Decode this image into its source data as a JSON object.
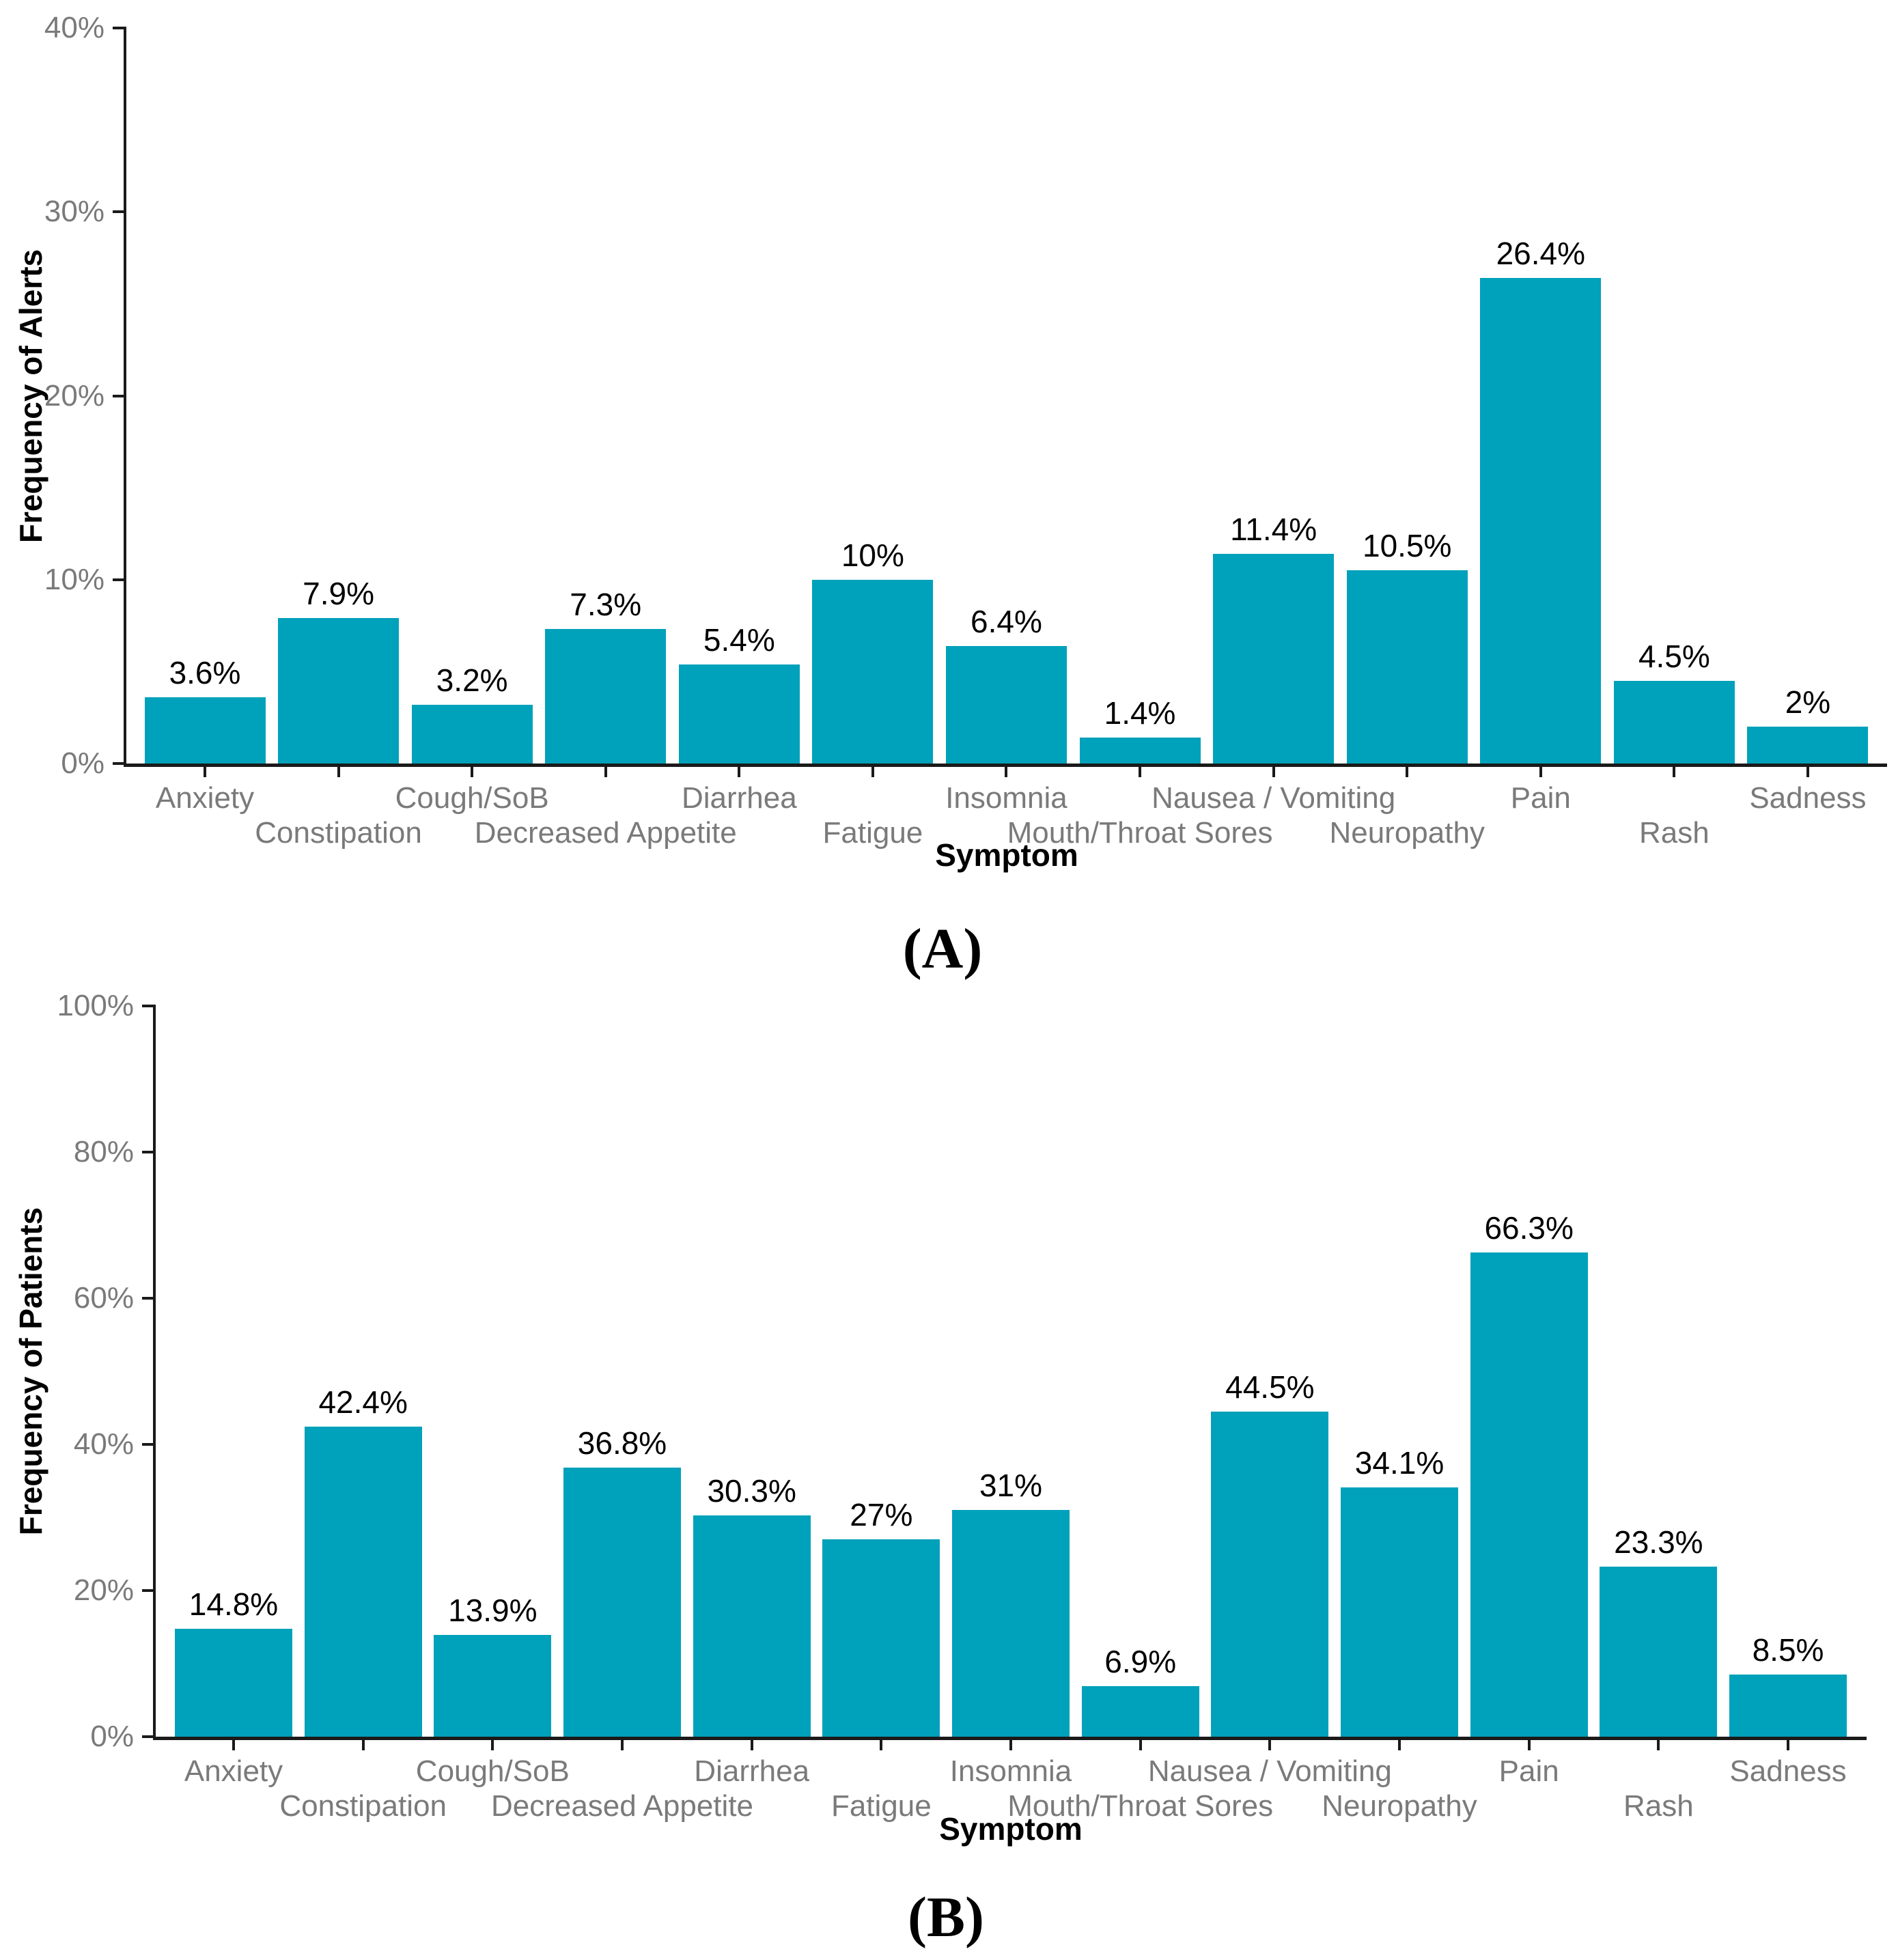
{
  "figure": {
    "panels": [
      {
        "panel_label": "(A)"
      },
      {
        "panel_label": "(B)"
      }
    ]
  },
  "chart_data": [
    {
      "type": "bar",
      "panel": "A",
      "categories": [
        "Anxiety",
        "Constipation",
        "Cough/SoB",
        "Decreased Appetite",
        "Diarrhea",
        "Fatigue",
        "Insomnia",
        "Mouth/Throat Sores",
        "Nausea / Vomiting",
        "Neuropathy",
        "Pain",
        "Rash",
        "Sadness"
      ],
      "values": [
        3.6,
        7.9,
        3.2,
        7.3,
        5.4,
        10,
        6.4,
        1.4,
        11.4,
        10.5,
        26.4,
        4.5,
        2
      ],
      "value_labels": [
        "3.6%",
        "7.9%",
        "3.2%",
        "7.3%",
        "5.4%",
        "10%",
        "6.4%",
        "1.4%",
        "11.4%",
        "10.5%",
        "26.4%",
        "4.5%",
        "2%"
      ],
      "xlabel": "Symptom",
      "ylabel": "Frequency of Alerts",
      "ylim": [
        0,
        40
      ],
      "yticks": [
        0,
        10,
        20,
        30,
        40
      ],
      "ytick_labels": [
        "0%",
        "10%",
        "20%",
        "30%",
        "40%"
      ],
      "bar_color": "#00A1BA",
      "grid": false,
      "legend": "none"
    },
    {
      "type": "bar",
      "panel": "B",
      "categories": [
        "Anxiety",
        "Constipation",
        "Cough/SoB",
        "Decreased Appetite",
        "Diarrhea",
        "Fatigue",
        "Insomnia",
        "Mouth/Throat Sores",
        "Nausea / Vomiting",
        "Neuropathy",
        "Pain",
        "Rash",
        "Sadness"
      ],
      "values": [
        14.8,
        42.4,
        13.9,
        36.8,
        30.3,
        27,
        31,
        6.9,
        44.5,
        34.1,
        66.3,
        23.3,
        8.5
      ],
      "value_labels": [
        "14.8%",
        "42.4%",
        "13.9%",
        "36.8%",
        "30.3%",
        "27%",
        "31%",
        "6.9%",
        "44.5%",
        "34.1%",
        "66.3%",
        "23.3%",
        "8.5%"
      ],
      "xlabel": "Symptom",
      "ylabel": "Frequency of Patients",
      "ylim": [
        0,
        100
      ],
      "yticks": [
        0,
        20,
        40,
        60,
        80,
        100
      ],
      "ytick_labels": [
        "0%",
        "20%",
        "40%",
        "60%",
        "80%",
        "100%"
      ],
      "bar_color": "#00A1BA",
      "grid": false,
      "legend": "none"
    }
  ]
}
